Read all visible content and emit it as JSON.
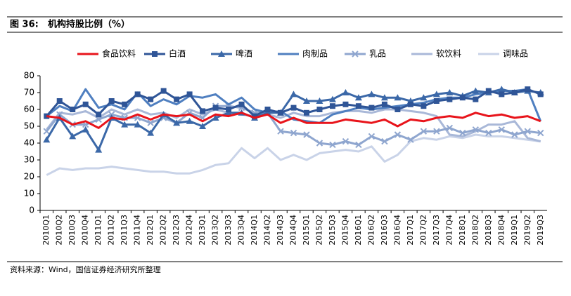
{
  "figure_label": "图 36:",
  "chart_data": {
    "type": "line",
    "title": "机构持股比例（%）",
    "source": "资料来源：Wind，国信证券经济研究所整理",
    "categories": [
      "2010Q1",
      "2010Q2",
      "2010Q3",
      "2010Q4",
      "2011Q1",
      "2011Q2",
      "2011Q3",
      "2011Q4",
      "2012Q1",
      "2012Q2",
      "2012Q3",
      "2012Q4",
      "2013Q1",
      "2013Q2",
      "2013Q3",
      "2013Q4",
      "2014Q1",
      "2014Q2",
      "2014Q3",
      "2014Q4",
      "2015Q1",
      "2015Q2",
      "2015Q3",
      "2015Q4",
      "2016Q1",
      "2016Q2",
      "2016Q3",
      "2016Q4",
      "2017Q1",
      "2017Q2",
      "2017Q3",
      "2017Q4",
      "2018Q1",
      "2018Q2",
      "2018Q3",
      "2018Q4",
      "2019Q1",
      "2019Q2",
      "2019Q3"
    ],
    "ylim": [
      0,
      80
    ],
    "yticks": [
      0,
      10,
      20,
      30,
      40,
      50,
      60,
      70,
      80
    ],
    "series": [
      {
        "name": "食品饮料",
        "color": "#e8141b",
        "marker": "none",
        "values": [
          56,
          55,
          51,
          53,
          49,
          55,
          54,
          57,
          54,
          57,
          56,
          57,
          53,
          57,
          56,
          58,
          55,
          57,
          52,
          55,
          52,
          52,
          52,
          54,
          53,
          52,
          54,
          50,
          54,
          53,
          55,
          56,
          55,
          58,
          56,
          57,
          55,
          56,
          53
        ]
      },
      {
        "name": "白酒",
        "color": "#2f5597",
        "marker": "square",
        "values": [
          56,
          65,
          60,
          63,
          57,
          65,
          63,
          69,
          66,
          71,
          66,
          69,
          59,
          61,
          60,
          63,
          56,
          60,
          58,
          61,
          58,
          60,
          62,
          63,
          62,
          61,
          63,
          60,
          63,
          62,
          65,
          66,
          67,
          66,
          71,
          69,
          70,
          72,
          69
        ]
      },
      {
        "name": "啤酒",
        "color": "#3b68a8",
        "marker": "triangle",
        "values": [
          42,
          55,
          44,
          48,
          36,
          55,
          51,
          51,
          46,
          57,
          52,
          53,
          50,
          55,
          58,
          58,
          55,
          58,
          58,
          69,
          65,
          65,
          66,
          70,
          67,
          69,
          67,
          67,
          65,
          67,
          69,
          70,
          68,
          71,
          70,
          72,
          70,
          71,
          70
        ]
      },
      {
        "name": "肉制品",
        "color": "#4f7fc0",
        "marker": "none",
        "values": [
          56,
          62,
          59,
          72,
          61,
          63,
          60,
          70,
          62,
          66,
          63,
          68,
          67,
          69,
          63,
          67,
          60,
          58,
          59,
          54,
          53,
          52,
          57,
          59,
          61,
          60,
          61,
          62,
          63,
          64,
          66,
          67,
          67,
          69,
          70,
          71,
          71,
          72,
          53
        ]
      },
      {
        "name": "乳品",
        "color": "#8fa6cf",
        "marker": "cross",
        "values": [
          47,
          57,
          51,
          51,
          54,
          57,
          55,
          55,
          52,
          55,
          52,
          58,
          55,
          62,
          62,
          61,
          58,
          58,
          47,
          46,
          45,
          40,
          39,
          41,
          39,
          44,
          41,
          45,
          42,
          47,
          47,
          49,
          46,
          48,
          46,
          48,
          45,
          47,
          46
        ]
      },
      {
        "name": "软饮料",
        "color": "#a9b8d8",
        "marker": "none",
        "values": [
          48,
          58,
          57,
          59,
          55,
          60,
          57,
          60,
          57,
          58,
          55,
          60,
          57,
          60,
          58,
          57,
          56,
          57,
          55,
          58,
          56,
          56,
          58,
          59,
          59,
          58,
          60,
          60,
          59,
          58,
          56,
          45,
          44,
          47,
          51,
          51,
          53,
          43,
          41
        ]
      },
      {
        "name": "调味品",
        "color": "#c9d3e8",
        "marker": "none",
        "values": [
          21,
          25,
          24,
          25,
          25,
          26,
          25,
          24,
          23,
          23,
          22,
          22,
          24,
          27,
          28,
          37,
          31,
          37,
          30,
          33,
          30,
          34,
          35,
          36,
          35,
          38,
          29,
          33,
          41,
          43,
          42,
          44,
          43,
          45,
          44,
          44,
          43,
          42,
          41
        ]
      }
    ]
  }
}
